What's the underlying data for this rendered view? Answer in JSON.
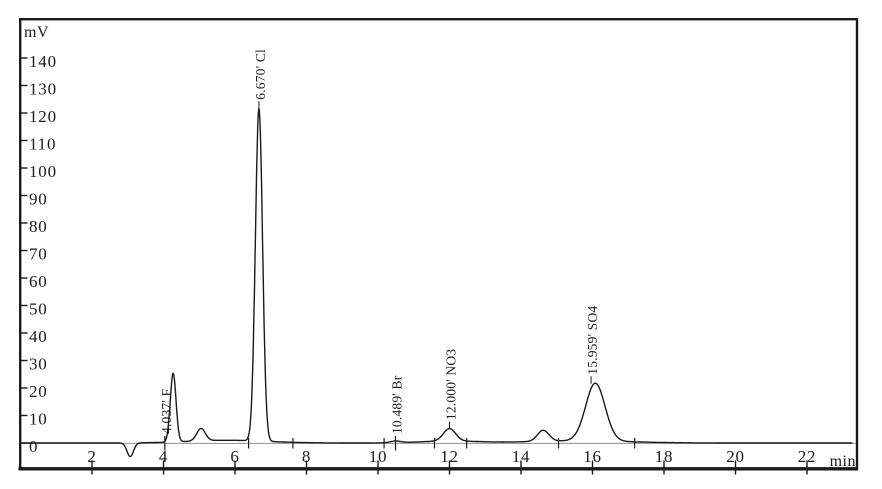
{
  "window": {
    "background": "#ffffff",
    "frame_color": "#1a1a1a"
  },
  "chart_data": {
    "type": "line",
    "chart_kind": "ion-chromatogram",
    "title": "",
    "ylabel": "mV",
    "xlabel": "min",
    "x_range_min": [
      0,
      23.35
    ],
    "y_range_mV": [
      -9,
      154
    ],
    "y_ticks_mV": [
      0,
      10,
      20,
      30,
      40,
      50,
      60,
      70,
      80,
      90,
      100,
      110,
      120,
      130,
      140
    ],
    "x_ticks_min": [
      2,
      4,
      6,
      8,
      10,
      12,
      14,
      16,
      18,
      20,
      22
    ],
    "grid": false,
    "legend": false,
    "line_color": "#1a1a1a",
    "baseline_color": "#909090",
    "peaks": [
      {
        "analyte": "F",
        "label": "4.037' F",
        "retention_time_min": 4.037,
        "apex_time_min": 4.27,
        "height_mV": 25,
        "sigma_min": 0.08,
        "label_anchor": "baseline"
      },
      {
        "analyte": "Cl",
        "label": "6.670' Cl",
        "retention_time_min": 6.67,
        "apex_time_min": 6.67,
        "height_mV": 121,
        "sigma_min": 0.1,
        "label_anchor": "apex"
      },
      {
        "analyte": "Br",
        "label": "10.489' Br",
        "retention_time_min": 10.489,
        "apex_time_min": 10.489,
        "height_mV": 0.6,
        "sigma_min": 0.15,
        "label_anchor": "baseline"
      },
      {
        "analyte": "NO3",
        "label": "12.000' NO3",
        "retention_time_min": 12.0,
        "apex_time_min": 12.0,
        "height_mV": 4.5,
        "sigma_min": 0.17,
        "label_anchor": "apex"
      },
      {
        "analyte": "SO4",
        "label": "15.959' SO4",
        "retention_time_min": 15.959,
        "apex_time_min": 16.08,
        "height_mV": 21,
        "sigma_min": 0.27,
        "label_anchor": "apex"
      }
    ],
    "unlabeled_features": [
      {
        "type": "negative_dip",
        "time_min": 3.07,
        "height_mV": -5,
        "sigma_min": 0.09
      },
      {
        "type": "bump",
        "time_min": 5.05,
        "height_mV": 4.5,
        "sigma_min": 0.12
      },
      {
        "type": "bump",
        "time_min": 14.62,
        "height_mV": 4,
        "sigma_min": 0.16
      }
    ],
    "baseline_drift": [
      {
        "time_min": 5.8,
        "height_mV": 1.0,
        "sigma_min": 1.1
      },
      {
        "time_min": 12.0,
        "height_mV": 0.7,
        "sigma_min": 0.8
      },
      {
        "time_min": 15.6,
        "height_mV": 0.8,
        "sigma_min": 1.4
      }
    ],
    "integration_marks_min": [
      6.38,
      7.62,
      10.17,
      11.58,
      12.48,
      15.05,
      17.18
    ]
  }
}
